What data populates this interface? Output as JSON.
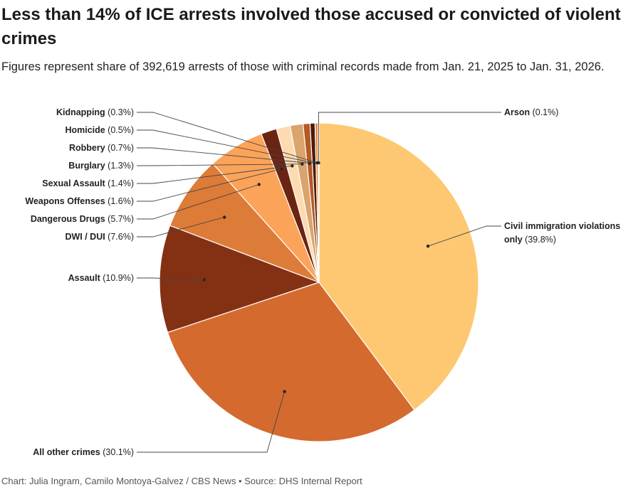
{
  "header": {
    "title": "Less than 14% of ICE arrests involved those accused or convicted of violent crimes",
    "subtitle": "Figures represent share of 392,619 arrests of those with criminal records made from Jan. 21, 2025 to Jan. 31, 2026."
  },
  "footer": {
    "source": "Chart: Julia Ingram, Camilo Montoya-Galvez / CBS News • Source: DHS Internal Report"
  },
  "chart_data": {
    "type": "pie",
    "unit": "%",
    "slices": [
      {
        "label": "Civil immigration violations only",
        "value": 39.8,
        "display": "(39.8%)",
        "color": "#fdc871"
      },
      {
        "label": "All other crimes",
        "value": 30.1,
        "display": "(30.1%)",
        "color": "#d46a2e"
      },
      {
        "label": "Assault",
        "value": 10.9,
        "display": "(10.9%)",
        "color": "#843113"
      },
      {
        "label": "DWI / DUI",
        "value": 7.6,
        "display": "(7.6%)",
        "color": "#dd7b38"
      },
      {
        "label": "Dangerous Drugs",
        "value": 5.7,
        "display": "(5.7%)",
        "color": "#fca35a"
      },
      {
        "label": "Weapons Offenses",
        "value": 1.6,
        "display": "(1.6%)",
        "color": "#6b2411"
      },
      {
        "label": "Sexual Assault",
        "value": 1.4,
        "display": "(1.4%)",
        "color": "#fedab0"
      },
      {
        "label": "Burglary",
        "value": 1.3,
        "display": "(1.3%)",
        "color": "#d9a46e"
      },
      {
        "label": "Robbery",
        "value": 0.7,
        "display": "(0.7%)",
        "color": "#b65a22"
      },
      {
        "label": "Homicide",
        "value": 0.5,
        "display": "(0.5%)",
        "color": "#4a1a0c"
      },
      {
        "label": "Kidnapping",
        "value": 0.3,
        "display": "(0.3%)",
        "color": "#e98b3e"
      },
      {
        "label": "Arson",
        "value": 0.1,
        "display": "(0.1%)",
        "color": "#2b0e05"
      }
    ]
  }
}
